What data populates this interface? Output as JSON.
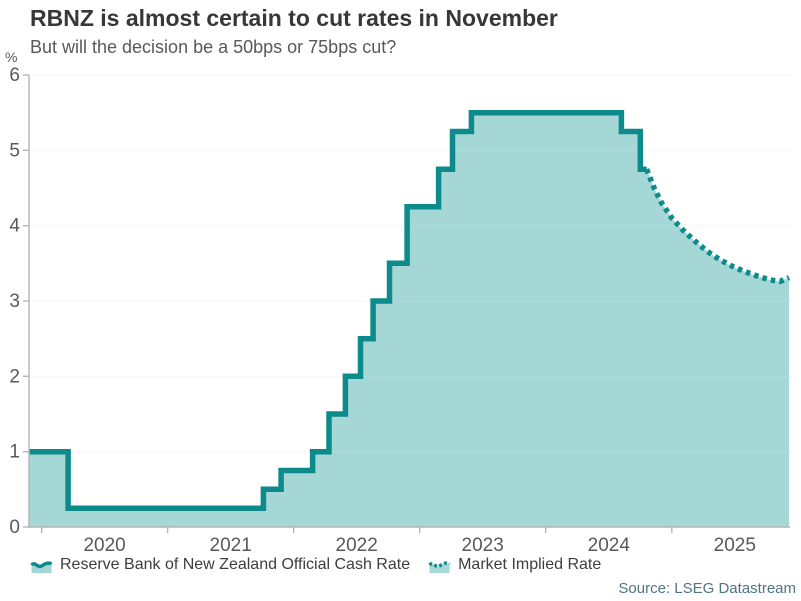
{
  "header": {
    "title": "RBNZ is almost certain to cut rates in November",
    "subtitle": "But will the decision be a 50bps or 75bps cut?"
  },
  "source_text": "Source: LSEG Datastream",
  "colors": {
    "line": "#0d8a8c",
    "fill": "#a4d7d5",
    "axis": "#b5b5b5",
    "grid": "#e3e3e3",
    "tick_text": "#595959"
  },
  "chart_data": {
    "type": "area",
    "title": "RBNZ is almost certain to cut rates in November",
    "subtitle": "But will the decision be a 50bps or 75bps cut?",
    "unit_label": "%",
    "ylim": [
      0,
      6
    ],
    "xlim": [
      2019.9,
      2025.93
    ],
    "y_ticks": [
      0,
      1,
      2,
      3,
      4,
      5,
      6
    ],
    "x_ticks_years": [
      2020,
      2021,
      2022,
      2023,
      2024,
      2025
    ],
    "grid": "dotted",
    "legend_position": "bottom",
    "legend": [
      {
        "label": "Reserve Bank of New Zealand Official Cash Rate",
        "style": "solid"
      },
      {
        "label": "Market Implied Rate",
        "style": "dotted"
      }
    ],
    "series": [
      {
        "name": "Reserve Bank of New Zealand Official Cash Rate",
        "style": "solid",
        "step": true,
        "points": [
          [
            2019.9,
            1.0
          ],
          [
            2020.21,
            0.25
          ],
          [
            2021.76,
            0.5
          ],
          [
            2021.9,
            0.75
          ],
          [
            2022.15,
            1.0
          ],
          [
            2022.28,
            1.5
          ],
          [
            2022.41,
            2.0
          ],
          [
            2022.53,
            2.5
          ],
          [
            2022.63,
            3.0
          ],
          [
            2022.76,
            3.5
          ],
          [
            2022.9,
            4.25
          ],
          [
            2023.15,
            4.75
          ],
          [
            2023.26,
            5.25
          ],
          [
            2023.41,
            5.5
          ],
          [
            2024.6,
            5.25
          ],
          [
            2024.75,
            4.75
          ],
          [
            2024.8,
            4.75
          ]
        ]
      },
      {
        "name": "Market Implied Rate",
        "style": "dotted",
        "step": false,
        "points": [
          [
            2024.8,
            4.75
          ],
          [
            2024.86,
            4.5
          ],
          [
            2024.92,
            4.3
          ],
          [
            2025.0,
            4.1
          ],
          [
            2025.09,
            3.94
          ],
          [
            2025.18,
            3.8
          ],
          [
            2025.28,
            3.66
          ],
          [
            2025.38,
            3.55
          ],
          [
            2025.48,
            3.46
          ],
          [
            2025.58,
            3.39
          ],
          [
            2025.68,
            3.33
          ],
          [
            2025.78,
            3.28
          ],
          [
            2025.86,
            3.26
          ],
          [
            2025.93,
            3.31
          ]
        ]
      }
    ]
  }
}
